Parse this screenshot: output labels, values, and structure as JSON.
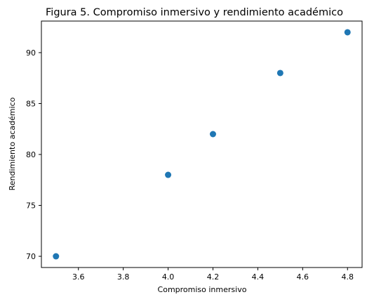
{
  "chart_data": {
    "type": "scatter",
    "title": "Figura 5. Compromiso inmersivo y rendimiento académico",
    "xlabel": "Compromiso inmersivo",
    "ylabel": "Rendimiento académico",
    "x": [
      3.5,
      4.0,
      4.2,
      4.5,
      4.8
    ],
    "y": [
      70,
      78,
      82,
      88,
      92
    ],
    "xlim": [
      3.435,
      4.865
    ],
    "ylim": [
      68.9,
      93.1
    ],
    "xticks": [
      3.6,
      3.8,
      4.0,
      4.2,
      4.4,
      4.6,
      4.8
    ],
    "xtick_labels": [
      "3.6",
      "3.8",
      "4.0",
      "4.2",
      "4.4",
      "4.6",
      "4.8"
    ],
    "yticks": [
      70,
      75,
      80,
      85,
      90
    ],
    "ytick_labels": [
      "70",
      "75",
      "80",
      "85",
      "90"
    ],
    "marker_color": "#1f77b4",
    "grid": false
  }
}
